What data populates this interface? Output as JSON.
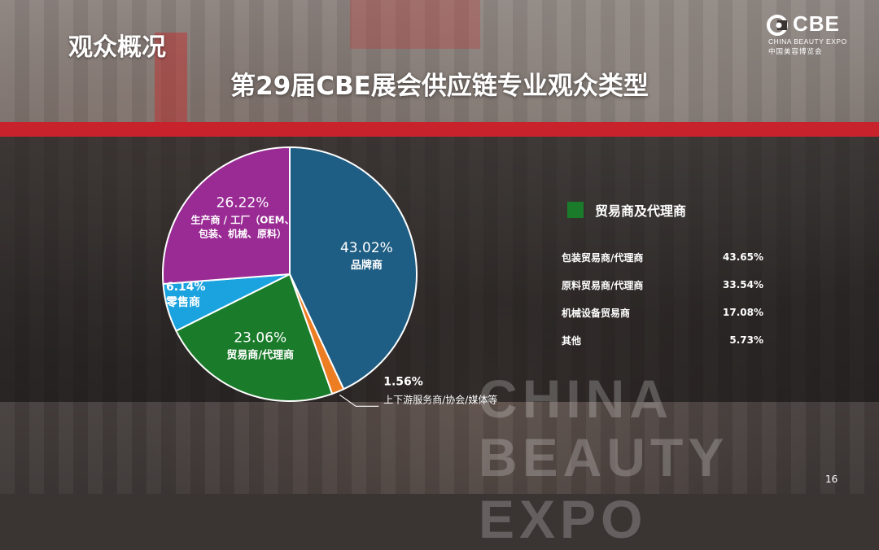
{
  "header": {
    "section_title": "观众概况",
    "logo_main": "CBE",
    "logo_sub_en": "CHINA BEAUTY EXPO",
    "logo_sub_cn": "中国美容博览会"
  },
  "chart_data": {
    "type": "pie",
    "title": "第29届CBE展会供应链专业观众类型",
    "slices": [
      {
        "label": "品牌商",
        "value": 43.02,
        "display": "43.02%",
        "color": "#1f5e84"
      },
      {
        "label": "上下游服务商/协会/媒体等",
        "value": 1.56,
        "display": "1.56%",
        "color": "#ed7d23"
      },
      {
        "label": "贸易商/代理商",
        "value": 23.06,
        "display": "23.06%",
        "color": "#1a7b2a"
      },
      {
        "label": "零售商",
        "value": 6.14,
        "display": "6.14%",
        "color": "#1aa3df"
      },
      {
        "label": "生产商 / 工厂（OEM、包装、机械、原料）",
        "value": 26.22,
        "display": "26.22%",
        "color": "#9a2a94",
        "label_lines": [
          "生产商 / 工厂（OEM、",
          "包装、机械、原料）"
        ]
      }
    ],
    "breakdown": {
      "legend_label": "贸易商及代理商",
      "legend_color": "#1a7b2a",
      "rows": [
        {
          "label": "包装贸易商/代理商",
          "value": 43.65,
          "display": "43.65%"
        },
        {
          "label": "原料贸易商/代理商",
          "value": 33.54,
          "display": "33.54%"
        },
        {
          "label": "机械设备贸易商",
          "value": 17.08,
          "display": "17.08%"
        },
        {
          "label": "其他",
          "value": 5.73,
          "display": "5.73%"
        }
      ]
    }
  },
  "watermark": {
    "line1": "CHINA",
    "line2": "BEAUTY EXPO"
  },
  "footer": {
    "page_number": "16"
  }
}
